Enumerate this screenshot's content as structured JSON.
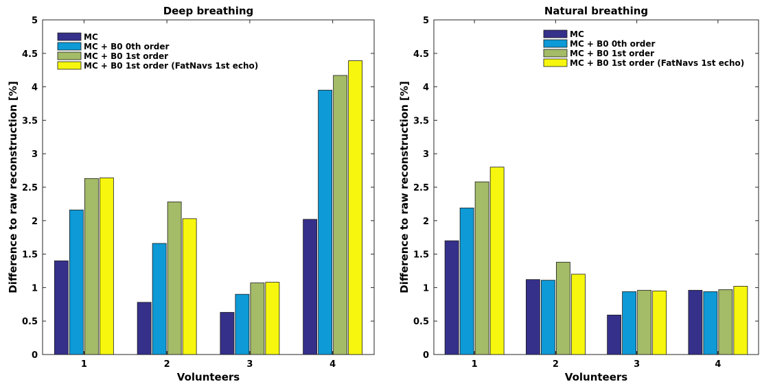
{
  "chart_data": [
    {
      "type": "bar",
      "title": "Deep breathing",
      "xlabel": "Volunteers",
      "ylabel": "Difference to raw reconstruction [%]",
      "categories": [
        "1",
        "2",
        "3",
        "4"
      ],
      "ylim": [
        0,
        5
      ],
      "yticks": [
        "0",
        "0.5",
        "1",
        "1.5",
        "2",
        "2.5",
        "3",
        "3.5",
        "4",
        "4.5",
        "5"
      ],
      "legend_position": "top-left",
      "grid": false,
      "series": [
        {
          "name": "MC",
          "color": "#35308a",
          "values": [
            1.4,
            0.78,
            0.63,
            2.02
          ]
        },
        {
          "name": "MC + B0 0th order",
          "color": "#0d9ad6",
          "values": [
            2.16,
            1.66,
            0.9,
            3.95
          ]
        },
        {
          "name": "MC + B0 1st order",
          "color": "#a4bb67",
          "values": [
            2.63,
            2.28,
            1.07,
            4.17
          ]
        },
        {
          "name": "MC + B0 1st order (FatNavs 1st echo)",
          "color": "#f6f60e",
          "values": [
            2.64,
            2.03,
            1.08,
            4.39
          ]
        }
      ]
    },
    {
      "type": "bar",
      "title": "Natural breathing",
      "xlabel": "Volunteers",
      "ylabel": "Difference to raw reconstruction [%]",
      "categories": [
        "1",
        "2",
        "3",
        "4"
      ],
      "ylim": [
        0,
        5
      ],
      "yticks": [
        "0",
        "0.5",
        "1",
        "1.5",
        "2",
        "2.5",
        "3",
        "3.5",
        "4",
        "4.5",
        "5"
      ],
      "legend_position": "top-right",
      "grid": false,
      "series": [
        {
          "name": "MC",
          "color": "#35308a",
          "values": [
            1.7,
            1.12,
            0.59,
            0.96
          ]
        },
        {
          "name": "MC + B0 0th order",
          "color": "#0d9ad6",
          "values": [
            2.19,
            1.11,
            0.94,
            0.94
          ]
        },
        {
          "name": "MC + B0 1st order",
          "color": "#a4bb67",
          "values": [
            2.58,
            1.38,
            0.96,
            0.97
          ]
        },
        {
          "name": "MC + B0 1st order (FatNavs 1st echo)",
          "color": "#f6f60e",
          "values": [
            2.8,
            1.2,
            0.95,
            1.02
          ]
        }
      ]
    }
  ]
}
